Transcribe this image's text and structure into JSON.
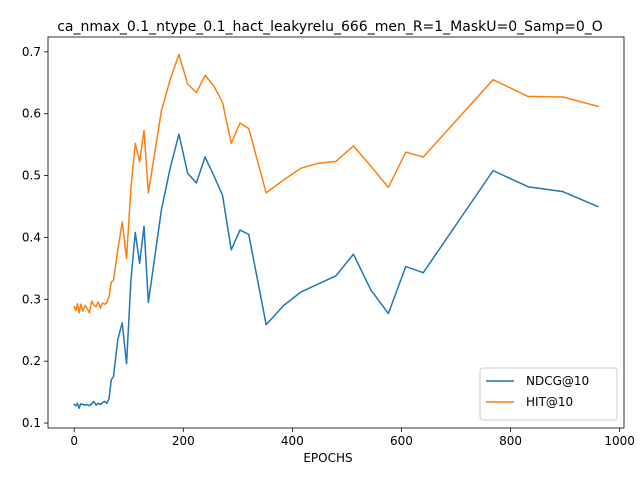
{
  "chart_data": {
    "type": "line",
    "title": "ca_nmax_0.1_ntype_0.1_hact_leakyrelu_666_men_R=1_MaskU=0_Samp=0_O",
    "xlabel": "EPOCHS",
    "ylabel": "",
    "xlim": [
      -48,
      1008
    ],
    "ylim": [
      0.092,
      0.724
    ],
    "xticks": [
      0,
      200,
      400,
      600,
      800,
      1000
    ],
    "yticks": [
      0.1,
      0.2,
      0.3,
      0.4,
      0.5,
      0.6,
      0.7
    ],
    "grid": false,
    "legend_position": "lower-right",
    "series": [
      {
        "name": "NDCG@10",
        "color": "#1f77b4",
        "x": [
          0,
          3,
          6,
          9,
          12,
          16,
          20,
          24,
          28,
          32,
          36,
          40,
          44,
          48,
          52,
          56,
          60,
          64,
          68,
          72,
          80,
          88,
          96,
          104,
          112,
          120,
          128,
          136,
          160,
          176,
          192,
          208,
          224,
          240,
          256,
          272,
          288,
          304,
          320,
          352,
          384,
          416,
          448,
          480,
          512,
          544,
          576,
          608,
          640,
          768,
          832,
          896,
          960
        ],
        "values": [
          0.13,
          0.128,
          0.132,
          0.124,
          0.131,
          0.13,
          0.129,
          0.13,
          0.128,
          0.131,
          0.135,
          0.129,
          0.132,
          0.13,
          0.133,
          0.135,
          0.132,
          0.14,
          0.17,
          0.175,
          0.235,
          0.262,
          0.196,
          0.33,
          0.408,
          0.358,
          0.418,
          0.295,
          0.445,
          0.512,
          0.567,
          0.504,
          0.488,
          0.53,
          0.5,
          0.468,
          0.38,
          0.412,
          0.405,
          0.259,
          0.29,
          0.312,
          0.325,
          0.338,
          0.373,
          0.315,
          0.277,
          0.353,
          0.343,
          0.508,
          0.482,
          0.474,
          0.45
        ]
      },
      {
        "name": "HIT@10",
        "color": "#ff7f0e",
        "x": [
          0,
          3,
          6,
          9,
          12,
          16,
          20,
          24,
          28,
          32,
          36,
          40,
          44,
          48,
          52,
          56,
          60,
          64,
          68,
          72,
          80,
          88,
          96,
          104,
          112,
          120,
          128,
          136,
          160,
          176,
          192,
          208,
          224,
          240,
          256,
          272,
          288,
          304,
          320,
          352,
          384,
          416,
          448,
          480,
          512,
          544,
          576,
          608,
          640,
          768,
          832,
          896,
          960
        ],
        "values": [
          0.288,
          0.282,
          0.293,
          0.278,
          0.292,
          0.281,
          0.29,
          0.285,
          0.278,
          0.297,
          0.291,
          0.288,
          0.296,
          0.286,
          0.294,
          0.292,
          0.295,
          0.305,
          0.328,
          0.33,
          0.38,
          0.425,
          0.366,
          0.48,
          0.552,
          0.522,
          0.573,
          0.472,
          0.605,
          0.655,
          0.696,
          0.648,
          0.634,
          0.662,
          0.645,
          0.618,
          0.552,
          0.585,
          0.576,
          0.472,
          0.493,
          0.512,
          0.52,
          0.523,
          0.548,
          0.515,
          0.481,
          0.538,
          0.53,
          0.655,
          0.628,
          0.627,
          0.612
        ]
      }
    ]
  }
}
